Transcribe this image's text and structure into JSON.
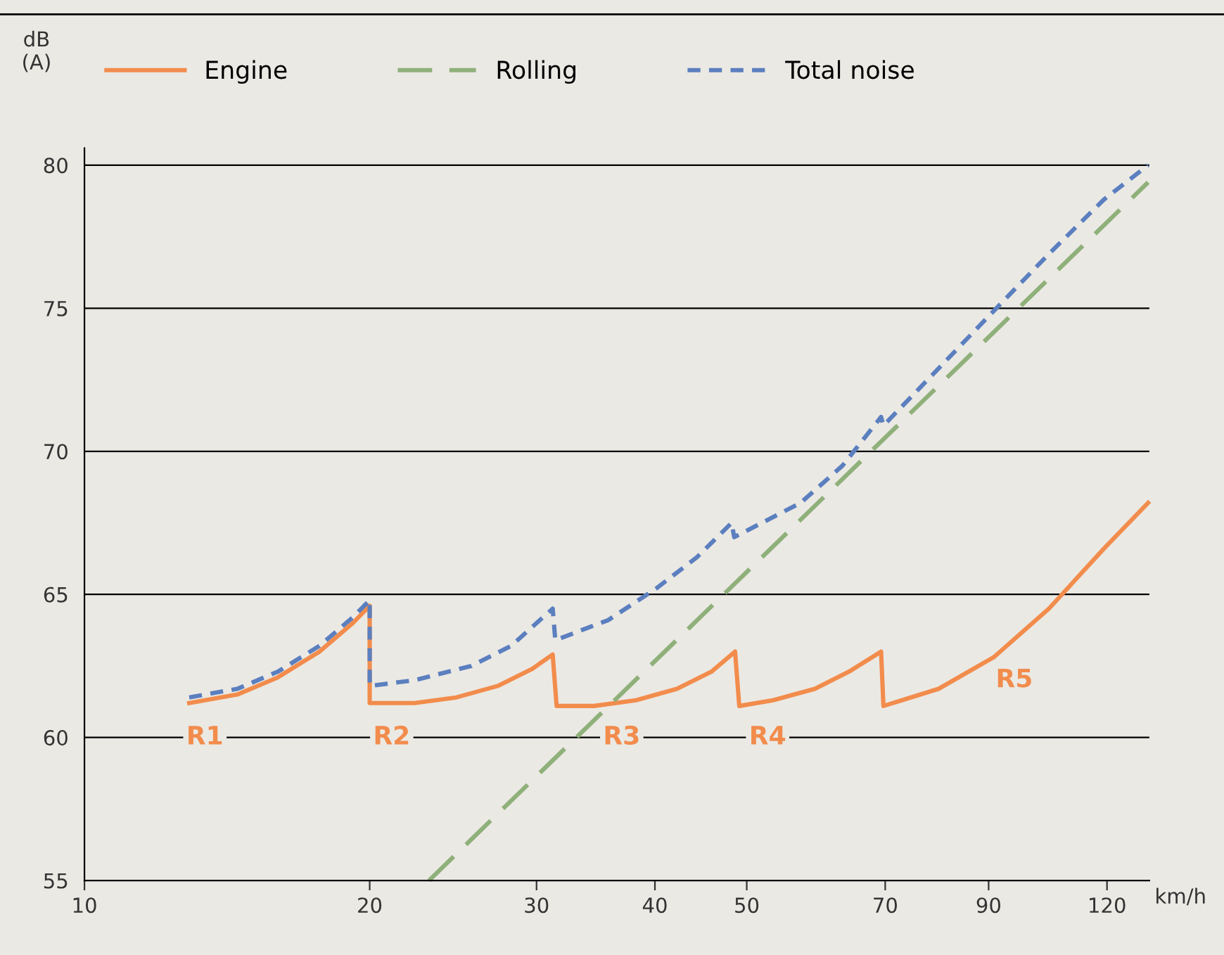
{
  "chart_data": {
    "type": "line",
    "xlabel": "km/h",
    "ylabel": "dB\n(A)",
    "log": "x",
    "xlim": [
      10,
      133
    ],
    "ylim": [
      55,
      80.6
    ],
    "xticks": [
      10,
      20,
      30,
      40,
      50,
      70,
      90,
      120
    ],
    "yticks": [
      55,
      60,
      65,
      70,
      75,
      80
    ],
    "grid": "y",
    "legend": "top",
    "tick_labels": "xy",
    "series": [
      {
        "name": "Engine",
        "color": "#f28c4c",
        "line_style": "solid",
        "x": [
          12.9,
          14.5,
          16.0,
          17.7,
          19.2,
          20,
          20,
          22.3,
          24.7,
          27.3,
          29.7,
          31.2,
          31.5,
          34.5,
          38.2,
          42.2,
          45.9,
          48.6,
          49.1,
          53.3,
          59.0,
          64.1,
          69.3,
          69.7,
          79.7,
          91.1,
          104.2,
          119.1,
          132.6
        ],
        "values": [
          61.2,
          61.5,
          62.1,
          63.0,
          64.0,
          64.6,
          61.2,
          61.2,
          61.4,
          61.8,
          62.4,
          62.9,
          61.1,
          61.1,
          61.3,
          61.7,
          62.3,
          63.0,
          61.1,
          61.3,
          61.7,
          62.3,
          63.0,
          61.1,
          61.7,
          62.8,
          64.5,
          66.6,
          68.2
        ]
      },
      {
        "name": "Rolling",
        "color": "#8fb07a",
        "line_style": "dashed",
        "x": [
          23.1,
          132.6
        ],
        "values": [
          55,
          79.4
        ]
      },
      {
        "name": "Total noise",
        "color": "#5b7fbf",
        "line_style": "dotted",
        "x": [
          12.9,
          14.5,
          16.0,
          17.7,
          19.2,
          20,
          20,
          22.3,
          25.6,
          28.2,
          31.2,
          31.4,
          35.7,
          40.1,
          44.3,
          48.2,
          48.5,
          57.0,
          63.1,
          69.3,
          69.7,
          79.7,
          91.1,
          104.2,
          119.1,
          132.6
        ],
        "values": [
          61.4,
          61.7,
          62.3,
          63.2,
          64.2,
          64.8,
          61.8,
          62.0,
          62.5,
          63.2,
          64.5,
          63.4,
          64.1,
          65.2,
          66.3,
          67.5,
          67.0,
          68.2,
          69.5,
          71.2,
          70.9,
          72.9,
          74.9,
          76.9,
          78.8,
          80.0
        ]
      }
    ],
    "annotations": [
      {
        "text": "R1",
        "x": 13.4,
        "y": 60
      },
      {
        "text": "R2",
        "x": 21.1,
        "y": 60
      },
      {
        "text": "R3",
        "x": 36.9,
        "y": 60
      },
      {
        "text": "R4",
        "x": 52.6,
        "y": 60
      },
      {
        "text": "R5",
        "x": 95.8,
        "y": 62.0
      }
    ]
  }
}
